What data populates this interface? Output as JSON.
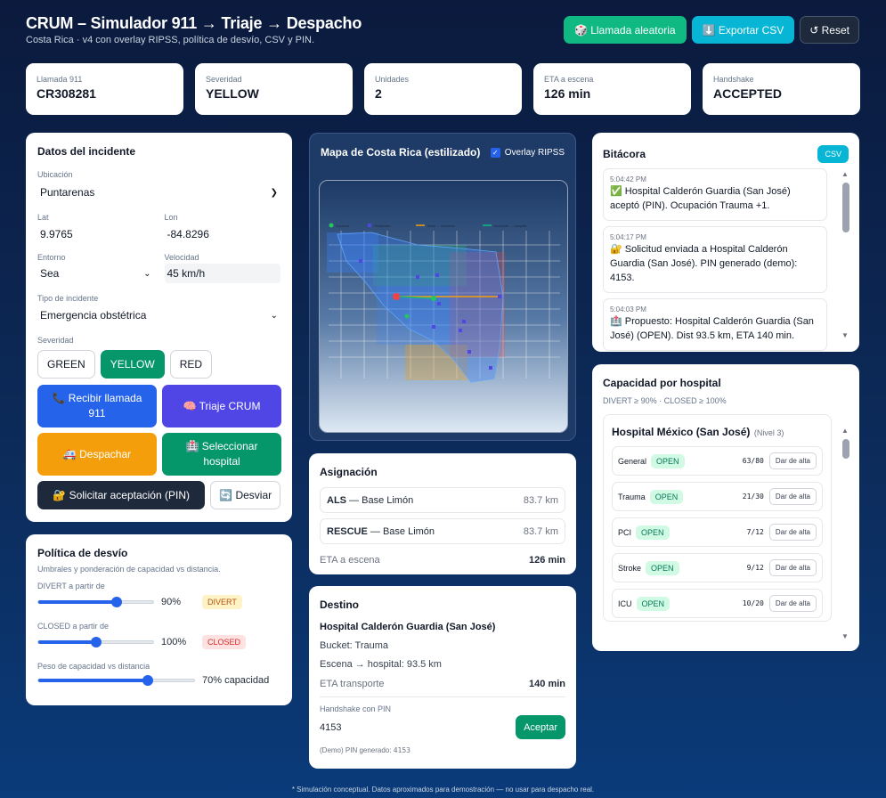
{
  "header": {
    "title": "CRUM – Simulador 911 → Triaje → Despacho",
    "subtitle": "Costa Rica · v4 con overlay RIPSS, política de desvío, CSV y PIN."
  },
  "top_actions": {
    "random_call": "🎲 Llamada aleatoria",
    "export_csv": "⬇️ Exportar CSV",
    "reset": "↺ Reset"
  },
  "stats": [
    {
      "label": "Llamada 911",
      "value": "CR308281"
    },
    {
      "label": "Severidad",
      "value": "YELLOW"
    },
    {
      "label": "Unidades",
      "value": "2"
    },
    {
      "label": "ETA a escena",
      "value": "126 min"
    },
    {
      "label": "Handshake",
      "value": "ACCEPTED"
    }
  ],
  "incident": {
    "title": "Datos del incidente",
    "location_label": "Ubicación",
    "location_value": "Puntarenas",
    "lat_label": "Lat",
    "lat_value": "9.9765",
    "lon_label": "Lon",
    "lon_value": "-84.8296",
    "env_label": "Entorno",
    "env_value": "Sea",
    "speed_label": "Velocidad",
    "speed_value": "45 km/h",
    "type_label": "Tipo de incidente",
    "type_value": "Emergencia obstétrica",
    "severity_label": "Severidad",
    "severity_options": [
      "GREEN",
      "YELLOW",
      "RED"
    ],
    "severity_selected": "YELLOW",
    "btn_receive": "📞 Recibir llamada 911",
    "btn_triage": "🧠 Triaje CRUM",
    "btn_dispatch": "🚑 Despachar",
    "btn_select_hospital": "🏥 Seleccionar hospital",
    "btn_request_pin": "🔐 Solicitar aceptación (PIN)",
    "btn_divert": "🔄 Desviar"
  },
  "policy": {
    "title": "Política de desvío",
    "subtitle": "Umbrales y ponderación de capacidad vs distancia.",
    "divert_label": "DIVERT a partir de",
    "divert_value": "90%",
    "divert_fraction": 0.68,
    "divert_pill": "DIVERT",
    "closed_label": "CLOSED a partir de",
    "closed_value": "100%",
    "closed_fraction": 0.5,
    "closed_pill": "CLOSED",
    "weight_label": "Peso de capacidad vs distancia",
    "weight_value": "70% capacidad",
    "weight_fraction": 0.7
  },
  "map": {
    "title": "Mapa de Costa Rica (estilizado)",
    "overlay_label": "Overlay RIPSS",
    "overlay_checked": true,
    "legend": [
      "Sucesos",
      "Hospitales",
      "Base → incidente",
      "Incidente → hospital"
    ]
  },
  "assignment": {
    "title": "Asignación",
    "units": [
      {
        "unit": "ALS",
        "base": " — Base Limón",
        "dist": "83.7 km"
      },
      {
        "unit": "RESCUE",
        "base": " — Base Limón",
        "dist": "83.7 km"
      }
    ],
    "eta_label": "ETA a escena",
    "eta_value": "126 min"
  },
  "destination": {
    "title": "Destino",
    "hospital": "Hospital Calderón Guardia (San José)",
    "bucket": "Bucket: Trauma",
    "scene_to_hospital": "Escena → hospital: 93.5 km",
    "eta_label": "ETA transporte",
    "eta_value": "140 min",
    "handshake_label": "Handshake con PIN",
    "pin_value": "4153",
    "accept_btn": "Aceptar",
    "pin_note_label": "(Demo) PIN generado:",
    "pin_note_value": "4153"
  },
  "log": {
    "title": "Bitácora",
    "csv_btn": "CSV",
    "entries": [
      {
        "time": "5:04:42 PM",
        "msg": "✅ Hospital Calderón Guardia (San José) aceptó (PIN). Ocupación Trauma +1."
      },
      {
        "time": "5:04:17 PM",
        "msg": "🔐 Solicitud enviada a Hospital Calderón Guardia (San José). PIN generado (demo): 4153."
      },
      {
        "time": "5:04:03 PM",
        "msg": "🏥 Propuesto: Hospital Calderón Guardia (San José) (OPEN). Dist 93.5 km, ETA 140 min."
      }
    ]
  },
  "capacity": {
    "title": "Capacidad por hospital",
    "subtitle": "DIVERT ≥ 90% · CLOSED ≥ 100%",
    "hospital": "Hospital México (San José)",
    "level": "(Nivel 3)",
    "depts": [
      {
        "name": "General",
        "status": "OPEN",
        "ratio": "63/80"
      },
      {
        "name": "Trauma",
        "status": "OPEN",
        "ratio": "21/30"
      },
      {
        "name": "PCI",
        "status": "OPEN",
        "ratio": "7/12"
      },
      {
        "name": "Stroke",
        "status": "OPEN",
        "ratio": "9/12"
      },
      {
        "name": "ICU",
        "status": "OPEN",
        "ratio": "10/20"
      }
    ],
    "discharge_label": "Dar de alta"
  },
  "footer": "* Simulación conceptual. Datos aproximados para demostración — no usar para despacho real.",
  "colors": {
    "accent": "#2563eb",
    "success": "#059669",
    "warning": "#f59e0b",
    "cyan": "#06b6d4"
  }
}
